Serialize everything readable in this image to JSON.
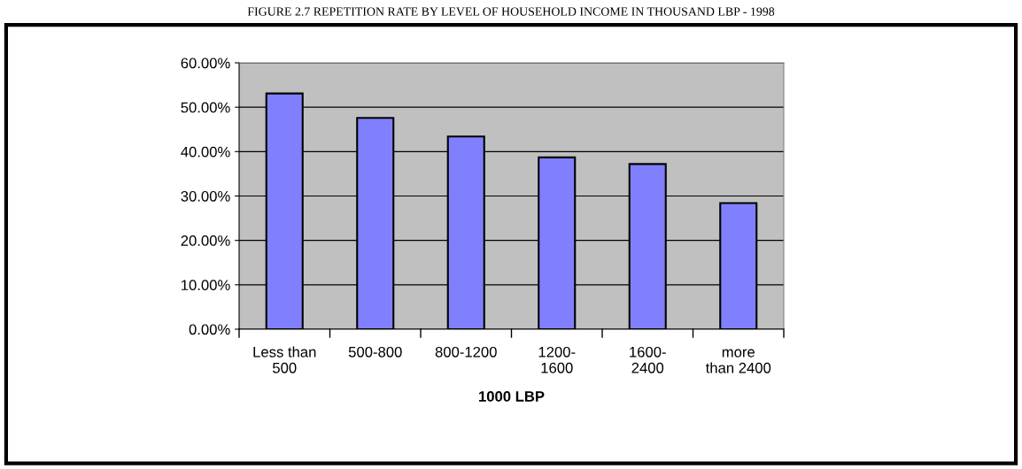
{
  "chart_data": {
    "type": "bar",
    "title": "FIGURE 2.7 REPETITION RATE BY LEVEL OF HOUSEHOLD INCOME IN THOUSAND LBP - 1998",
    "categories": [
      "Less than\n500",
      "500-800",
      "800-1200",
      "1200-\n1600",
      "1600-\n2400",
      "more\nthan 2400"
    ],
    "values": [
      53.1,
      47.6,
      43.4,
      38.7,
      37.2,
      28.4
    ],
    "color": "#8080ff",
    "xlabel": "1000 LBP",
    "ylim": [
      0,
      60
    ],
    "yticks": [
      {
        "value": 0,
        "label": "0.00%"
      },
      {
        "value": 10,
        "label": "10.00%"
      },
      {
        "value": 20,
        "label": "20.00%"
      },
      {
        "value": 30,
        "label": "30.00%"
      },
      {
        "value": 40,
        "label": "40.00%"
      },
      {
        "value": 50,
        "label": "50.00%"
      },
      {
        "value": 60,
        "label": "60.00%"
      }
    ],
    "grid": "y",
    "legend": false
  }
}
